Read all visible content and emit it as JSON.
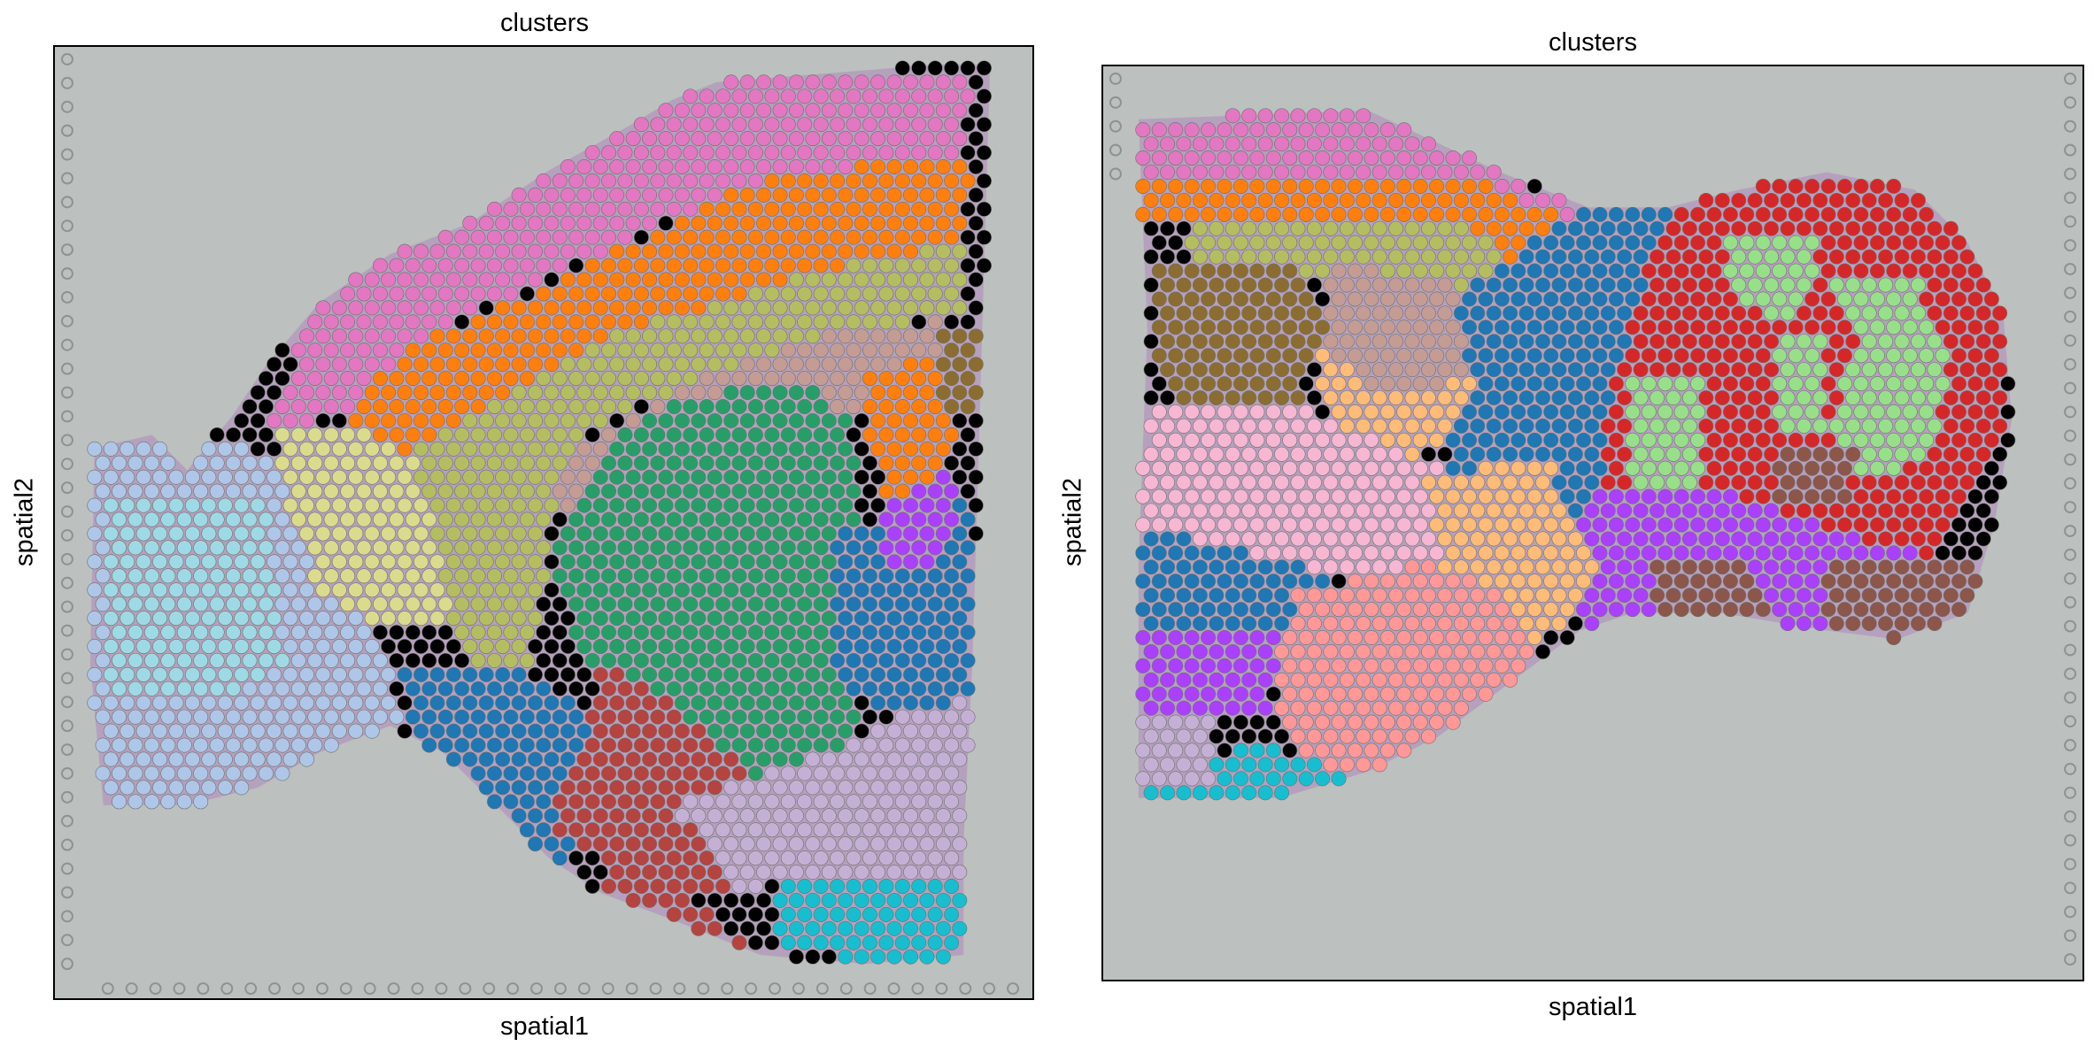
{
  "panels": [
    {
      "title": "clusters",
      "xlabel": "spatial1",
      "ylabel": "spatial2"
    },
    {
      "title": "clusters",
      "xlabel": "spatial1",
      "ylabel": "spatial2"
    }
  ],
  "colors": {
    "background": "#bcc0be",
    "tissue": "#b49bbd",
    "fiducial": "#8e9290",
    "cluster_pink": "#e377c2",
    "cluster_orange": "#ff7f0e",
    "cluster_olive": "#bcbd22",
    "cluster_olive_light": "#b5bd61",
    "cluster_green": "#2ca02c",
    "cluster_teal_green": "#279e68",
    "cluster_tan": "#c49c94",
    "cluster_light_blue": "#aec7e8",
    "cluster_sky": "#9edae5",
    "cluster_khaki": "#dbdb8d",
    "cluster_blue": "#1f77b4",
    "cluster_brick": "#b5433f",
    "cluster_lavender": "#c5b0d5",
    "cluster_cyan": "#17becf",
    "cluster_purple": "#aa40fc",
    "cluster_peach": "#ffbb78",
    "cluster_red": "#d62728",
    "cluster_light_green": "#98df8a",
    "cluster_brown": "#8c564b",
    "cluster_light_pink": "#f7b6d2",
    "cluster_salmon": "#ff9896",
    "cluster_dark_olive": "#8c6d31"
  }
}
